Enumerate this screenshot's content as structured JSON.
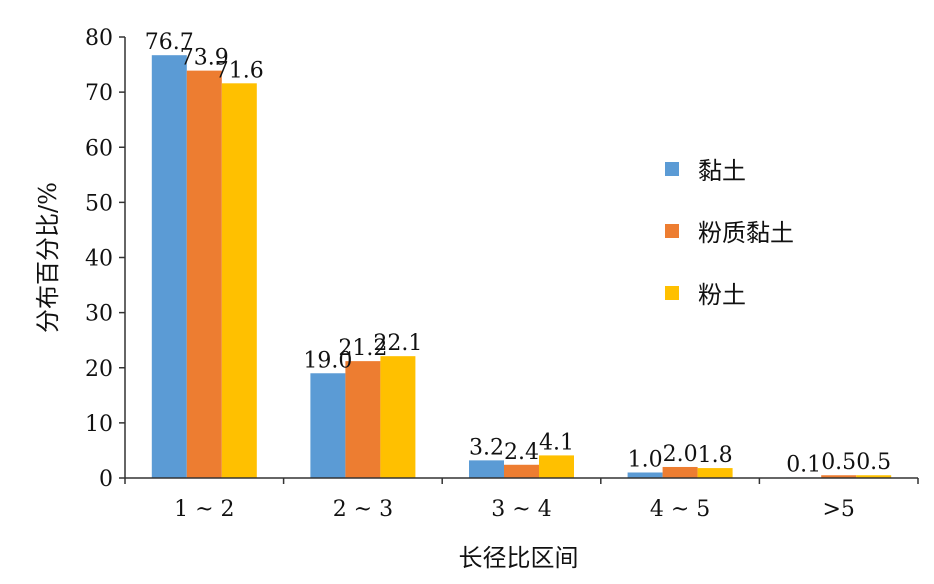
{
  "chart_data": {
    "type": "bar",
    "title": "",
    "xlabel": "长径比区间",
    "ylabel": "分布百分比/%",
    "categories": [
      "1 ~ 2",
      "2 ~ 3",
      "3 ~ 4",
      "4 ~ 5",
      ">5"
    ],
    "series": [
      {
        "name": "黏土",
        "color": "#5B9BD5",
        "values": [
          76.7,
          19.0,
          3.2,
          1.0,
          0.1
        ],
        "labels": [
          "76.7",
          "19.0",
          "3.2",
          "1.0",
          "0.1"
        ]
      },
      {
        "name": "粉质黏土",
        "color": "#ED7D31",
        "values": [
          73.9,
          21.2,
          2.4,
          2.0,
          0.5
        ],
        "labels": [
          "73.9",
          "21.2",
          "2.4",
          "2.0",
          "0.5"
        ]
      },
      {
        "name": "粉土",
        "color": "#FFC000",
        "values": [
          71.6,
          22.1,
          4.1,
          1.8,
          0.5
        ],
        "labels": [
          "71.6",
          "22.1",
          "4.1",
          "1.8",
          "0.5"
        ]
      }
    ],
    "ylim": [
      0,
      80
    ],
    "yticks": [
      0,
      10,
      20,
      30,
      40,
      50,
      60,
      70,
      80
    ],
    "grid": false,
    "legend_position": "right"
  }
}
